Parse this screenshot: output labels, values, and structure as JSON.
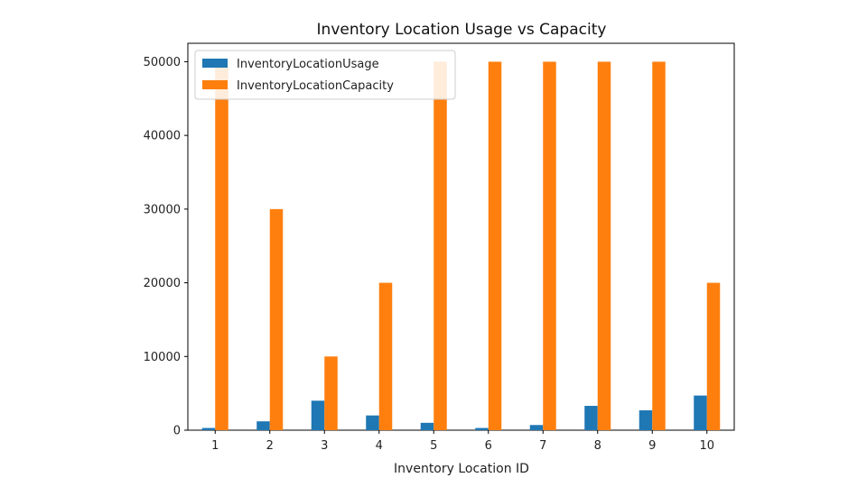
{
  "chart_data": {
    "type": "bar",
    "title": "Inventory Location Usage vs Capacity",
    "xlabel": "Inventory Location ID",
    "ylabel": "",
    "categories": [
      "1",
      "2",
      "3",
      "4",
      "5",
      "6",
      "7",
      "8",
      "9",
      "10"
    ],
    "series": [
      {
        "name": "InventoryLocationUsage",
        "color": "#1f77b4",
        "values": [
          300,
          1200,
          4000,
          2000,
          1000,
          300,
          700,
          3300,
          2700,
          4700
        ]
      },
      {
        "name": "InventoryLocationCapacity",
        "color": "#ff7f0e",
        "values": [
          50000,
          30000,
          10000,
          20000,
          50000,
          50000,
          50000,
          50000,
          50000,
          20000
        ]
      }
    ],
    "ylim": [
      0,
      52500
    ],
    "yticks": [
      "0",
      "10000",
      "20000",
      "30000",
      "40000",
      "50000"
    ],
    "grid": false,
    "legend_position": "top-left"
  }
}
